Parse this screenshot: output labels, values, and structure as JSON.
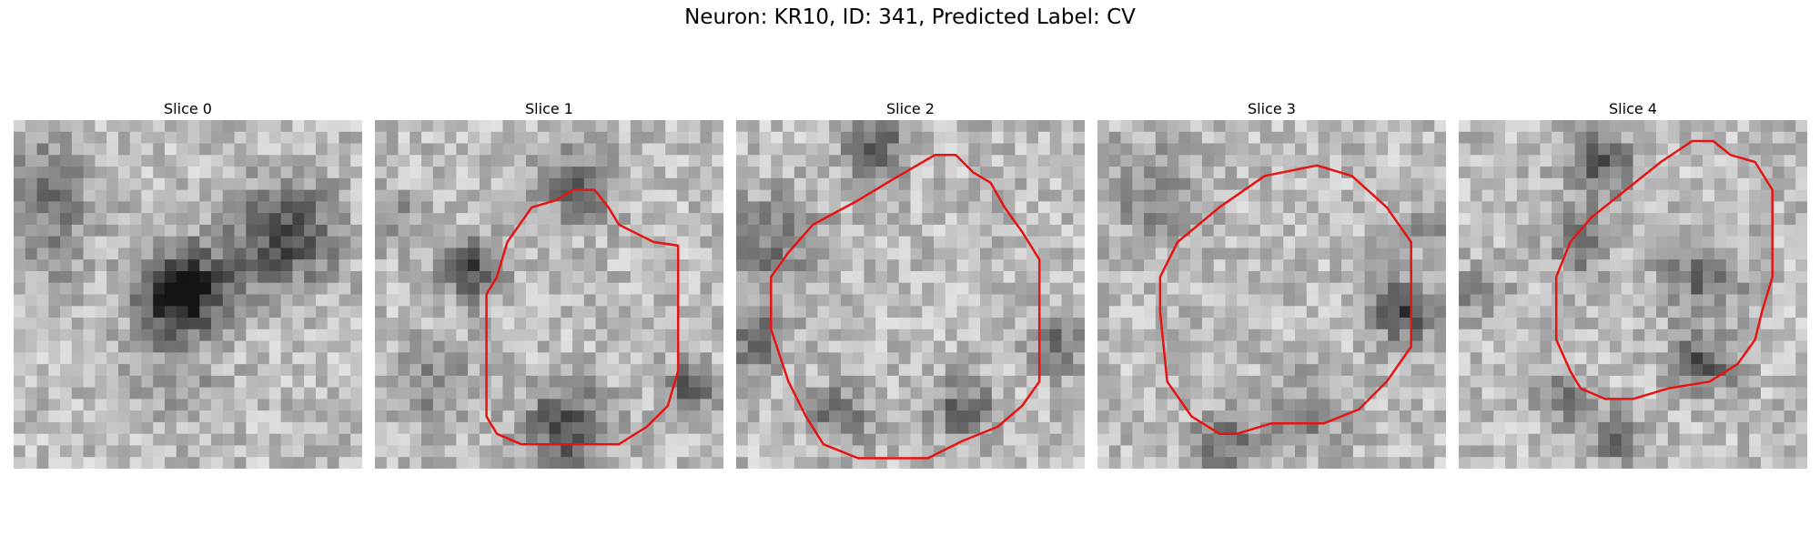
{
  "figure": {
    "title": "Neuron: KR10, ID: 341, Predicted Label: CV"
  },
  "panels": [
    {
      "title": "Slice 0",
      "has_contour": false
    },
    {
      "title": "Slice 1",
      "has_contour": true
    },
    {
      "title": "Slice 2",
      "has_contour": true
    },
    {
      "title": "Slice 3",
      "has_contour": true
    },
    {
      "title": "Slice 4",
      "has_contour": true
    }
  ],
  "colors": {
    "contour": "#e81414",
    "background": "#ffffff"
  },
  "image": {
    "colormap": "grayscale",
    "grid": 30
  }
}
